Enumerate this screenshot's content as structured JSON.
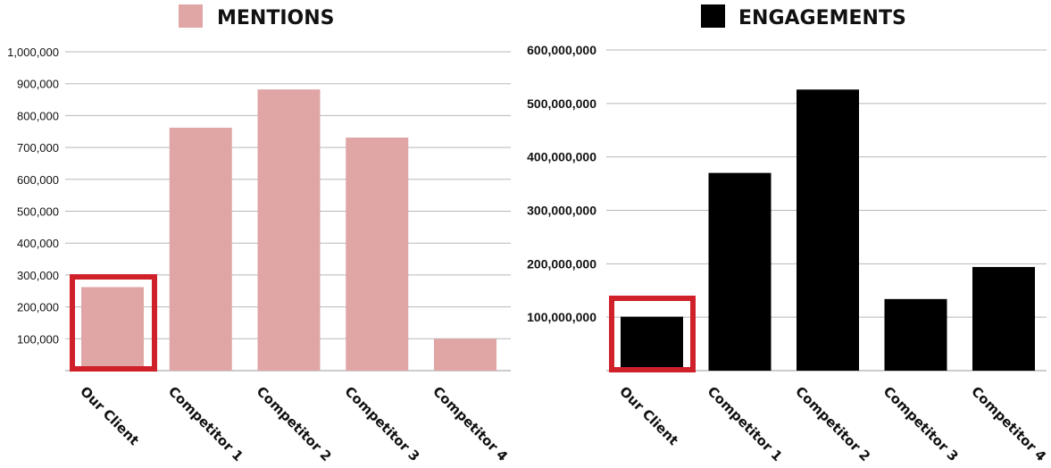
{
  "chart_data": [
    {
      "type": "bar",
      "legend": "MENTIONS",
      "color": "#e0a5a5",
      "categories": [
        "Our Client",
        "Competitor 1",
        "Competitor 2",
        "Competitor 3",
        "Competitor 4"
      ],
      "values": [
        262000,
        762000,
        882000,
        731000,
        100000
      ],
      "ylim": [
        0,
        1000000
      ],
      "yticks": [
        "1,000,000",
        "900,000",
        "800,000",
        "700,000",
        "600,000",
        "500,000",
        "400,000",
        "300,000",
        "200,000",
        "100,000"
      ],
      "ytick_values": [
        1000000,
        900000,
        800000,
        700000,
        600000,
        500000,
        400000,
        300000,
        200000,
        100000
      ],
      "grid": true,
      "legend_position": "top",
      "highlight": {
        "category": "Our Client",
        "color": "#d0202a"
      }
    },
    {
      "type": "bar",
      "legend": "ENGAGEMENTS",
      "color": "#000000",
      "categories": [
        "Our Client",
        "Competitor 1",
        "Competitor 2",
        "Competitor 3",
        "Competitor 4"
      ],
      "values": [
        101000000,
        370000000,
        526000000,
        134000000,
        194000000
      ],
      "ylim": [
        0,
        600000000
      ],
      "yticks": [
        "600,000,000",
        "500,000,000",
        "400,000,000",
        "300,000,000",
        "200,000,000",
        "100,000,000"
      ],
      "ytick_values": [
        600000000,
        500000000,
        400000000,
        300000000,
        200000000,
        100000000
      ],
      "grid": true,
      "legend_position": "top",
      "highlight": {
        "category": "Our Client",
        "color": "#d0202a"
      }
    }
  ]
}
